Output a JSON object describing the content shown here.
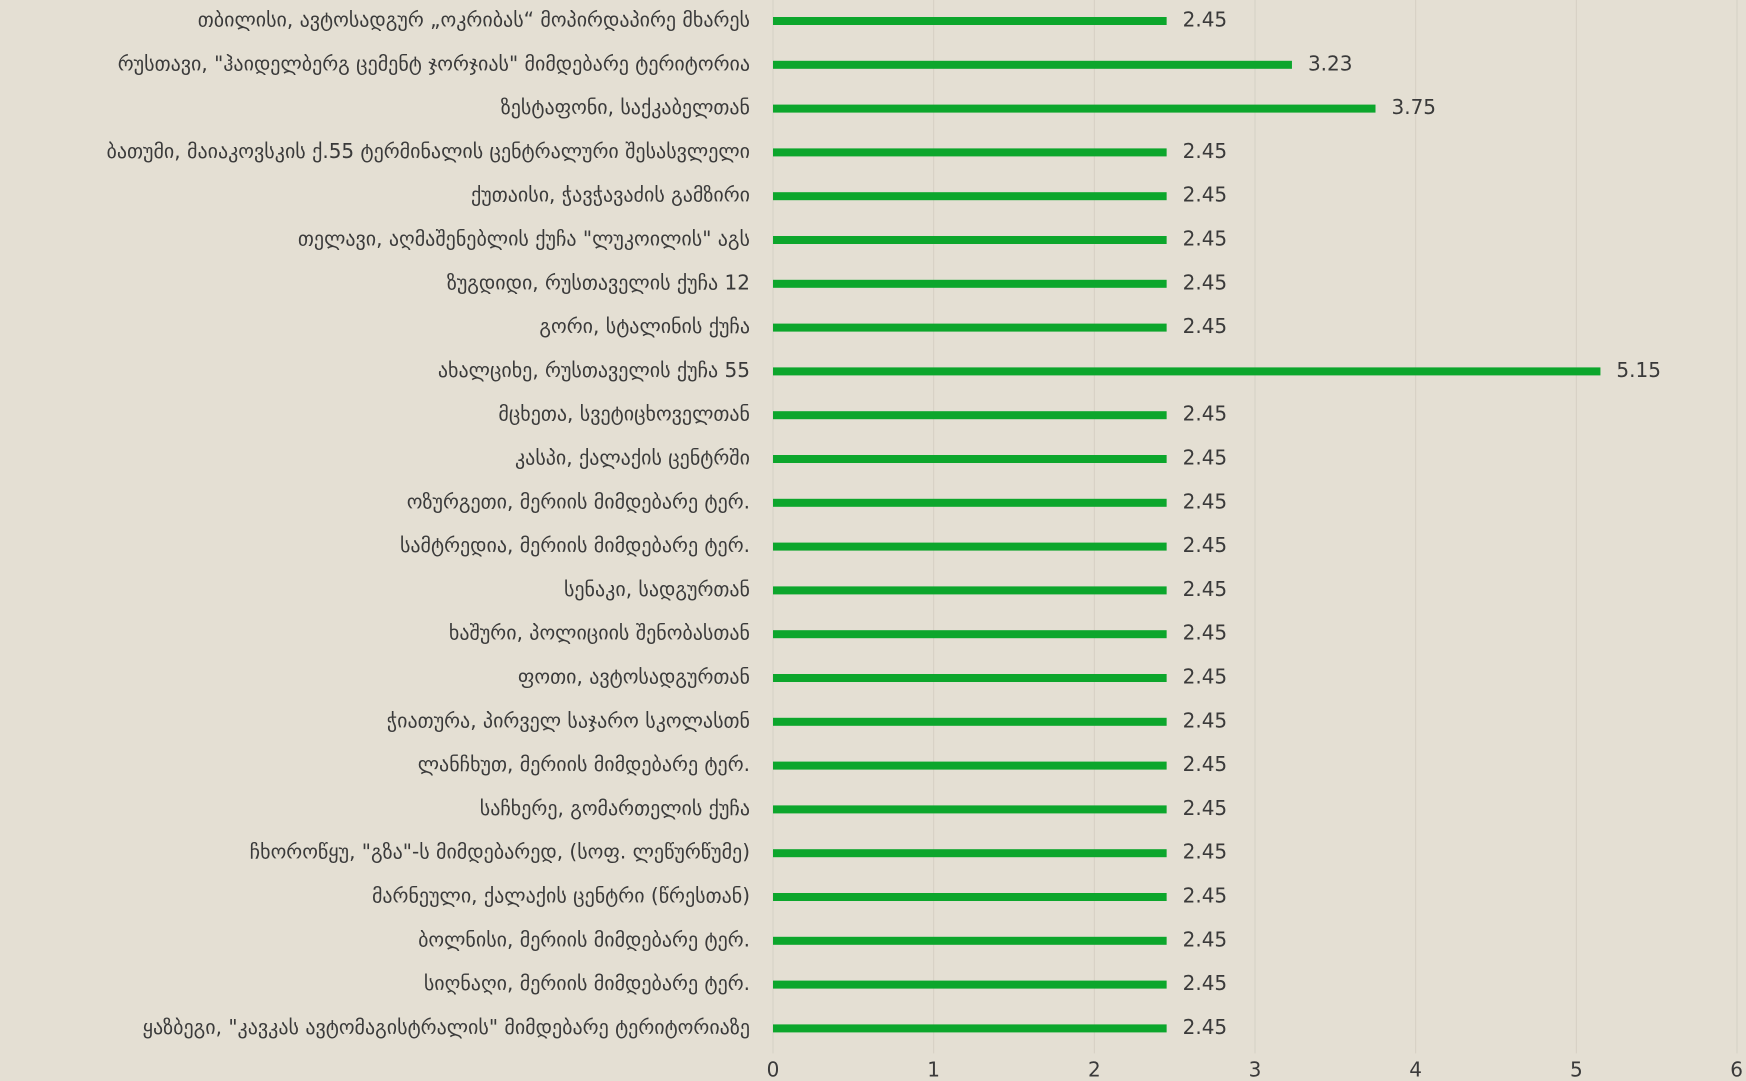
{
  "chart_data": {
    "type": "barh",
    "categories": [
      "თბილისი, ავტოსადგურ „ოკრიბას“ მოპირდაპირე მხარეს",
      "რუსთავი,  \"ჰაიდელბერგ ცემენტ ჯორჯიას\" მიმდებარე ტერიტორია",
      "ზესტაფონი, საქკაბელთან",
      "ბათუმი, მაიაკოვსკის ქ.55 ტერმინალის ცენტრალური შესასვლელი",
      "ქუთაისი, ჭავჭავაძის გამზირი",
      "თელავი, აღმაშენებლის ქუჩა \"ლუკოილის\" აგს",
      "ზუგდიდი, რუსთაველის ქუჩა 12",
      "გორი, სტალინის ქუჩა",
      "ახალციხე, რუსთაველის ქუჩა 55",
      "მცხეთა, სვეტიცხოველთან",
      "კასპი, ქალაქის ცენტრში",
      "ოზურგეთი, მერიის მიმდებარე ტერ.",
      "სამტრედია, მერიის მიმდებარე ტერ.",
      "სენაკი, სადგურთან",
      "ხაშური, პოლიციის შენობასთან",
      "ფოთი, ავტოსადგურთან",
      "ჭიათურა, პირველ საჯარო სკოლასთნ",
      "ლანჩხუთ, მერიის მიმდებარე ტერ.",
      "საჩხერე, გომართელის ქუჩა",
      "ჩხოროწყუ, \"გზა\"-ს მიმდებარედ, (სოფ. ლეწურწუმე)",
      "მარნეული, ქალაქის ცენტრი (წრესთან)",
      "ბოლნისი, მერიის მიმდებარე ტერ.",
      "სიღნაღი, მერიის მიმდებარე ტერ.",
      "ყაზბეგი, \"კავკას ავტომაგისტრალის\" მიმდებარე ტერიტორიაზე"
    ],
    "values": [
      2.45,
      3.23,
      3.75,
      2.45,
      2.45,
      2.45,
      2.45,
      2.45,
      5.15,
      2.45,
      2.45,
      2.45,
      2.45,
      2.45,
      2.45,
      2.45,
      2.45,
      2.45,
      2.45,
      2.45,
      2.45,
      2.45,
      2.45,
      2.45
    ],
    "color": "#0ca62c",
    "xlim": [
      0,
      6
    ],
    "xticks": [
      0,
      1,
      2,
      3,
      4,
      5,
      6
    ],
    "grid": true
  }
}
